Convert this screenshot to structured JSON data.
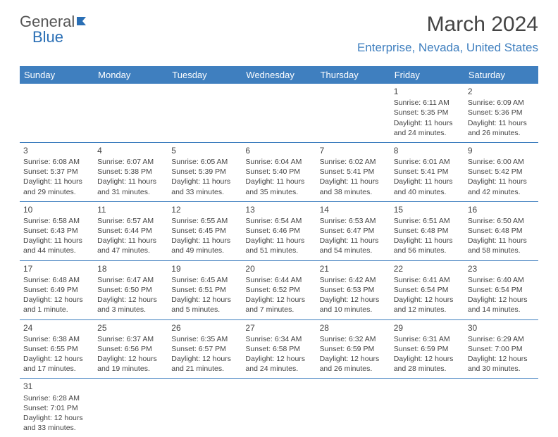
{
  "logo": {
    "general": "General",
    "blue": "Blue"
  },
  "title": "March 2024",
  "subtitle": "Enterprise, Nevada, United States",
  "colors": {
    "header_bg": "#3f7fbf",
    "header_fg": "#ffffff",
    "accent": "#3f7fbf",
    "text": "#444444"
  },
  "daysOfWeek": [
    "Sunday",
    "Monday",
    "Tuesday",
    "Wednesday",
    "Thursday",
    "Friday",
    "Saturday"
  ],
  "weeks": [
    [
      null,
      null,
      null,
      null,
      null,
      {
        "n": "1",
        "sr": "6:11 AM",
        "ss": "5:35 PM",
        "dl": "11 hours and 24 minutes."
      },
      {
        "n": "2",
        "sr": "6:09 AM",
        "ss": "5:36 PM",
        "dl": "11 hours and 26 minutes."
      }
    ],
    [
      {
        "n": "3",
        "sr": "6:08 AM",
        "ss": "5:37 PM",
        "dl": "11 hours and 29 minutes."
      },
      {
        "n": "4",
        "sr": "6:07 AM",
        "ss": "5:38 PM",
        "dl": "11 hours and 31 minutes."
      },
      {
        "n": "5",
        "sr": "6:05 AM",
        "ss": "5:39 PM",
        "dl": "11 hours and 33 minutes."
      },
      {
        "n": "6",
        "sr": "6:04 AM",
        "ss": "5:40 PM",
        "dl": "11 hours and 35 minutes."
      },
      {
        "n": "7",
        "sr": "6:02 AM",
        "ss": "5:41 PM",
        "dl": "11 hours and 38 minutes."
      },
      {
        "n": "8",
        "sr": "6:01 AM",
        "ss": "5:41 PM",
        "dl": "11 hours and 40 minutes."
      },
      {
        "n": "9",
        "sr": "6:00 AM",
        "ss": "5:42 PM",
        "dl": "11 hours and 42 minutes."
      }
    ],
    [
      {
        "n": "10",
        "sr": "6:58 AM",
        "ss": "6:43 PM",
        "dl": "11 hours and 44 minutes."
      },
      {
        "n": "11",
        "sr": "6:57 AM",
        "ss": "6:44 PM",
        "dl": "11 hours and 47 minutes."
      },
      {
        "n": "12",
        "sr": "6:55 AM",
        "ss": "6:45 PM",
        "dl": "11 hours and 49 minutes."
      },
      {
        "n": "13",
        "sr": "6:54 AM",
        "ss": "6:46 PM",
        "dl": "11 hours and 51 minutes."
      },
      {
        "n": "14",
        "sr": "6:53 AM",
        "ss": "6:47 PM",
        "dl": "11 hours and 54 minutes."
      },
      {
        "n": "15",
        "sr": "6:51 AM",
        "ss": "6:48 PM",
        "dl": "11 hours and 56 minutes."
      },
      {
        "n": "16",
        "sr": "6:50 AM",
        "ss": "6:48 PM",
        "dl": "11 hours and 58 minutes."
      }
    ],
    [
      {
        "n": "17",
        "sr": "6:48 AM",
        "ss": "6:49 PM",
        "dl": "12 hours and 1 minute."
      },
      {
        "n": "18",
        "sr": "6:47 AM",
        "ss": "6:50 PM",
        "dl": "12 hours and 3 minutes."
      },
      {
        "n": "19",
        "sr": "6:45 AM",
        "ss": "6:51 PM",
        "dl": "12 hours and 5 minutes."
      },
      {
        "n": "20",
        "sr": "6:44 AM",
        "ss": "6:52 PM",
        "dl": "12 hours and 7 minutes."
      },
      {
        "n": "21",
        "sr": "6:42 AM",
        "ss": "6:53 PM",
        "dl": "12 hours and 10 minutes."
      },
      {
        "n": "22",
        "sr": "6:41 AM",
        "ss": "6:54 PM",
        "dl": "12 hours and 12 minutes."
      },
      {
        "n": "23",
        "sr": "6:40 AM",
        "ss": "6:54 PM",
        "dl": "12 hours and 14 minutes."
      }
    ],
    [
      {
        "n": "24",
        "sr": "6:38 AM",
        "ss": "6:55 PM",
        "dl": "12 hours and 17 minutes."
      },
      {
        "n": "25",
        "sr": "6:37 AM",
        "ss": "6:56 PM",
        "dl": "12 hours and 19 minutes."
      },
      {
        "n": "26",
        "sr": "6:35 AM",
        "ss": "6:57 PM",
        "dl": "12 hours and 21 minutes."
      },
      {
        "n": "27",
        "sr": "6:34 AM",
        "ss": "6:58 PM",
        "dl": "12 hours and 24 minutes."
      },
      {
        "n": "28",
        "sr": "6:32 AM",
        "ss": "6:59 PM",
        "dl": "12 hours and 26 minutes."
      },
      {
        "n": "29",
        "sr": "6:31 AM",
        "ss": "6:59 PM",
        "dl": "12 hours and 28 minutes."
      },
      {
        "n": "30",
        "sr": "6:29 AM",
        "ss": "7:00 PM",
        "dl": "12 hours and 30 minutes."
      }
    ],
    [
      {
        "n": "31",
        "sr": "6:28 AM",
        "ss": "7:01 PM",
        "dl": "12 hours and 33 minutes."
      },
      null,
      null,
      null,
      null,
      null,
      null
    ]
  ],
  "labels": {
    "sunrise": "Sunrise: ",
    "sunset": "Sunset: ",
    "daylight": "Daylight: "
  }
}
